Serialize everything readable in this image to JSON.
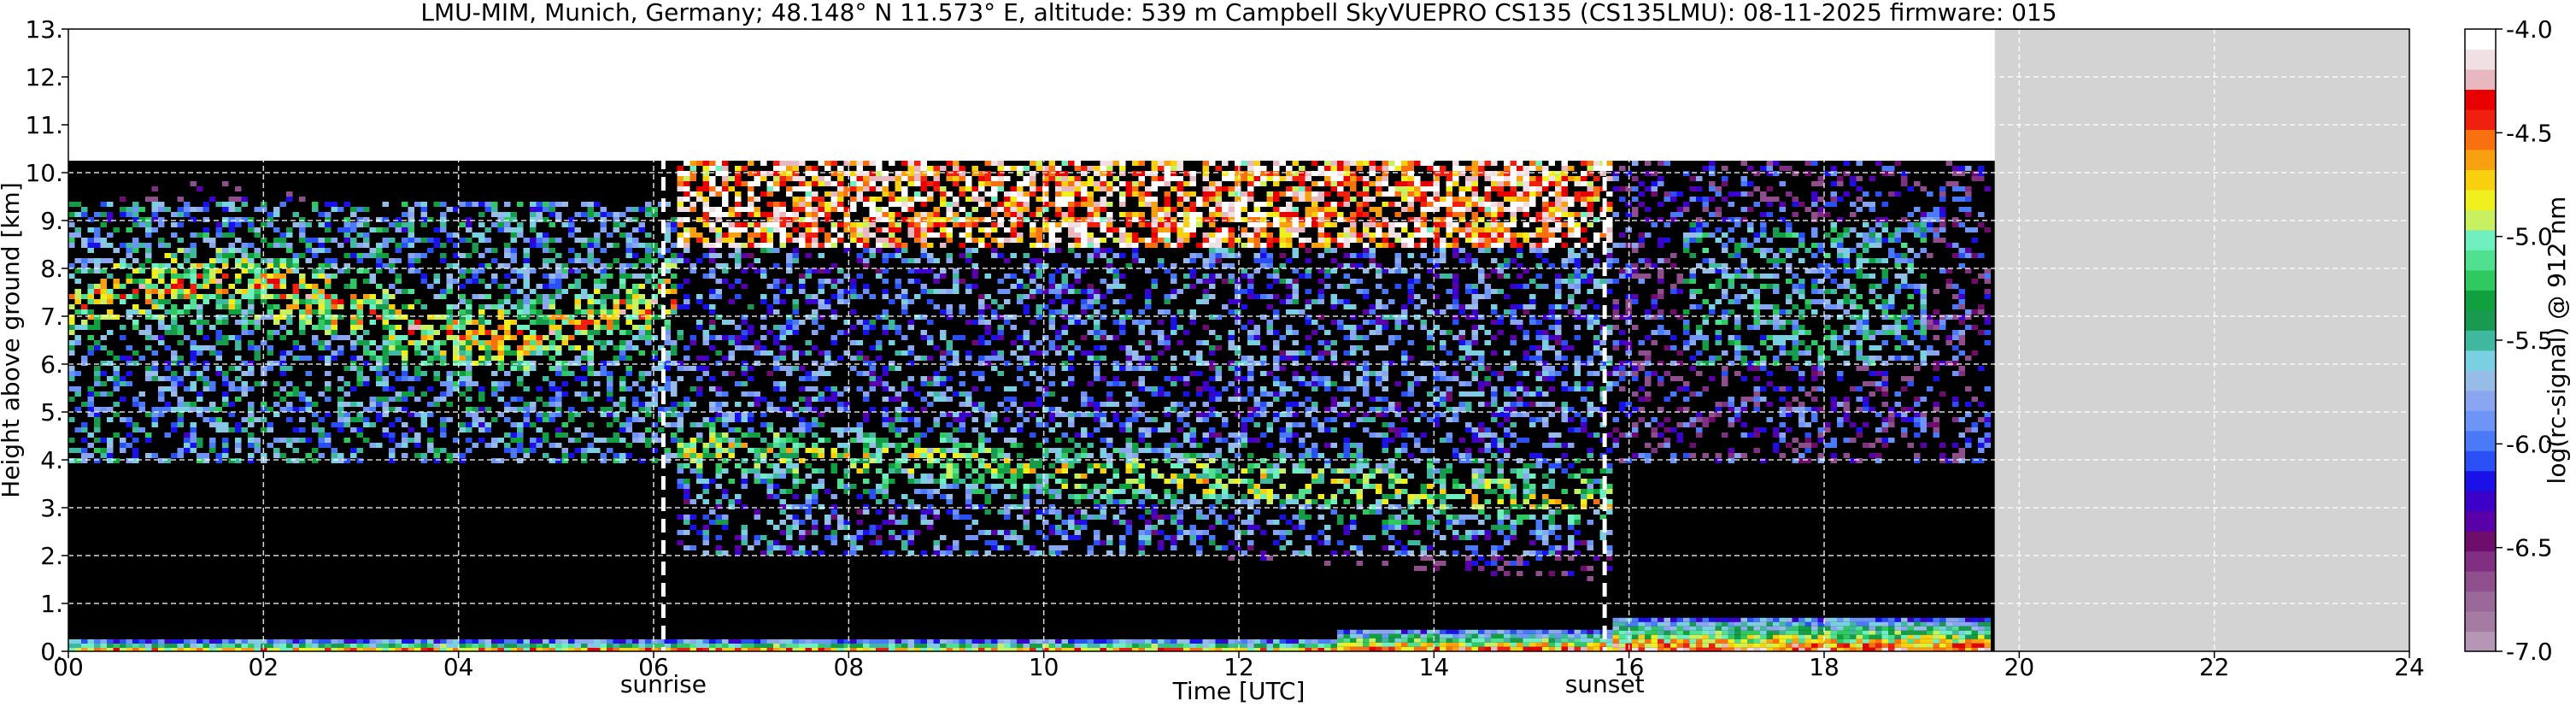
{
  "chart_data": {
    "type": "heatmap",
    "title": "LMU-MIM, Munich, Germany; 48.148° N 11.573° E, altitude: 539 m    Campbell SkyVUEPRO CS135 (CS135LMU): 08-11-2025    firmware: 015",
    "xlabel": "Time [UTC]",
    "ylabel": "Height above ground [km]",
    "xlim": [
      0,
      24
    ],
    "ylim": [
      0,
      13
    ],
    "x_ticks": [
      "00",
      "02",
      "04",
      "06",
      "08",
      "10",
      "12",
      "14",
      "16",
      "18",
      "20",
      "22",
      "24"
    ],
    "y_ticks": [
      "0.",
      "1.",
      "2.",
      "3.",
      "4.",
      "5.",
      "6.",
      "7.",
      "8.",
      "9.",
      "10.",
      "11.",
      "12.",
      "13."
    ],
    "grid": true,
    "data_end_hour": 19.75,
    "signal_top_km": 10.25,
    "sunrise_hour": 6.1,
    "sunset_hour": 15.75,
    "markers": [
      {
        "label": "sunrise",
        "x": 6.1
      },
      {
        "label": "sunset",
        "x": 15.75
      }
    ],
    "no_data_color": "#d3d3d3",
    "background_color": "#000000",
    "colorbar": {
      "label": "log(rc-signal) @ 912 nm",
      "range": [
        -7.0,
        -4.0
      ],
      "ticks": [
        "-7.0",
        "-6.5",
        "-6.0",
        "-5.5",
        "-5.0",
        "-4.5",
        "-4.0"
      ],
      "colors": [
        "#b596b4",
        "#a57aa3",
        "#9a6899",
        "#8e4f8c",
        "#802f82",
        "#6e0d6b",
        "#5a00a8",
        "#3c00c8",
        "#1a10e8",
        "#2a50f5",
        "#4a7af8",
        "#6f94f8",
        "#8aa6f0",
        "#98bce8",
        "#7ad0e0",
        "#40b8a0",
        "#1a9a50",
        "#10a040",
        "#30c860",
        "#50e090",
        "#70f0c0",
        "#c8f060",
        "#f0f020",
        "#f8d010",
        "#f8a010",
        "#f87010",
        "#f02010",
        "#e80000",
        "#e8b8c0",
        "#f0e0e4",
        "#ffffff"
      ]
    }
  }
}
